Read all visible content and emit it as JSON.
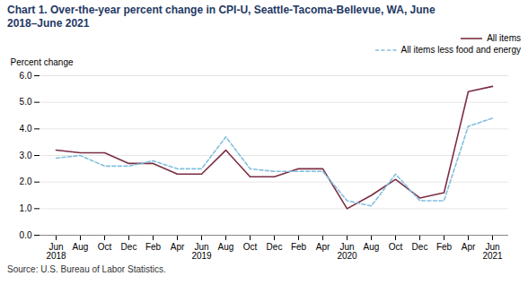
{
  "chart_data": {
    "type": "line",
    "title": "Chart 1. Over-the-year percent change in CPI-U, Seattle-Tacoma-Bellevue, WA, June\n2018–June 2021",
    "ylabel": "Percent change",
    "source": "Source: U.S. Bureau of Labor Statistics.",
    "categories": [
      "Jun\n2018",
      "Aug",
      "Oct",
      "Dec",
      "Feb",
      "Apr",
      "Jun\n2019",
      "Aug",
      "Oct",
      "Dec",
      "Feb",
      "Apr",
      "Jun\n2020",
      "Aug",
      "Oct",
      "Dec",
      "Feb",
      "Apr",
      "Jun\n2021"
    ],
    "series": [
      {
        "name": "All items",
        "color": "#7B2D42",
        "line_style": "solid",
        "values": [
          3.2,
          3.1,
          3.1,
          2.7,
          2.7,
          2.3,
          2.3,
          3.2,
          2.2,
          2.2,
          2.5,
          2.5,
          1.0,
          1.5,
          2.1,
          1.4,
          1.6,
          5.4,
          5.6
        ]
      },
      {
        "name": "All items less food and energy",
        "color": "#82BEDD",
        "line_style": "dashed",
        "values": [
          2.9,
          3.0,
          2.6,
          2.6,
          2.8,
          2.5,
          2.5,
          3.7,
          2.5,
          2.4,
          2.4,
          2.4,
          1.3,
          1.1,
          2.3,
          1.3,
          1.3,
          4.1,
          4.4
        ]
      }
    ],
    "ylim": [
      0.0,
      6.0
    ],
    "yticks": [
      {
        "value": 0,
        "label": "0.0"
      },
      {
        "value": 1,
        "label": "1.0"
      },
      {
        "value": 2,
        "label": "2.0"
      },
      {
        "value": 3,
        "label": "3.0"
      },
      {
        "value": 4,
        "label": "4.0"
      },
      {
        "value": 5,
        "label": "5.0"
      },
      {
        "value": 6,
        "label": "6.0"
      }
    ],
    "grid": true,
    "legend": "upper right"
  }
}
